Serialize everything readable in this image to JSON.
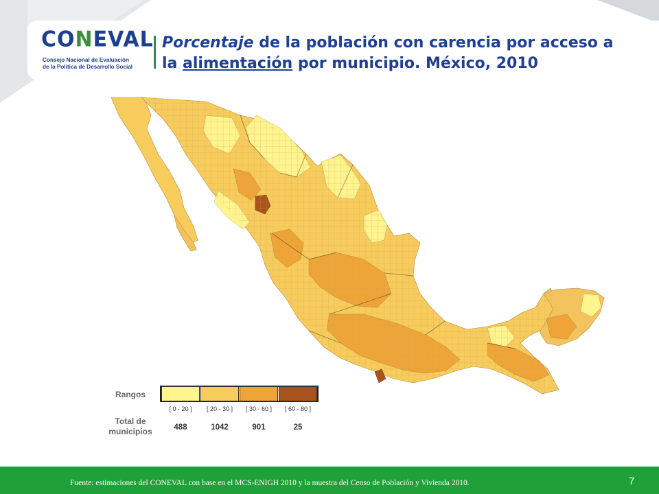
{
  "brand": {
    "logo_text": "CONEVAL",
    "logo_subtitle_line1": "Consejo Nacional de Evaluación",
    "logo_subtitle_line2": "de la Política de Desarrollo Social"
  },
  "title": {
    "italic_part": "Porcentaje",
    "part1": " de la población con carencia por acceso a",
    "part2_prefix": "la ",
    "underlined_part": "alimentación",
    "part2_suffix": " por municipio. México, 2010"
  },
  "legend": {
    "ranges_label": "Rangos",
    "total_label_line1": "Total de",
    "total_label_line2": "municipios",
    "bins": [
      {
        "range": "[ 0 - 20 ]",
        "count": "488",
        "color": "#fff48e"
      },
      {
        "range": "[ 20 - 30 ]",
        "count": "1042",
        "color": "#f7cc5c"
      },
      {
        "range": "[ 30 - 60 ]",
        "count": "901",
        "color": "#eea437"
      },
      {
        "range": "[ 60 - 80 ]",
        "count": "25",
        "color": "#a8531b"
      }
    ]
  },
  "colors": {
    "title": "#1f3f96",
    "footer": "#1fa038",
    "bin_low": "#fff48e",
    "bin_midlow": "#f7cc5c",
    "bin_midhigh": "#eea437",
    "bin_high": "#a8531b"
  },
  "footer": {
    "source": "Fuente: estimaciones del CONEVAL con base en el MCS-ENIGH 2010 y la muestra del Censo de Población y Vivienda 2010.",
    "page_number": "7"
  }
}
